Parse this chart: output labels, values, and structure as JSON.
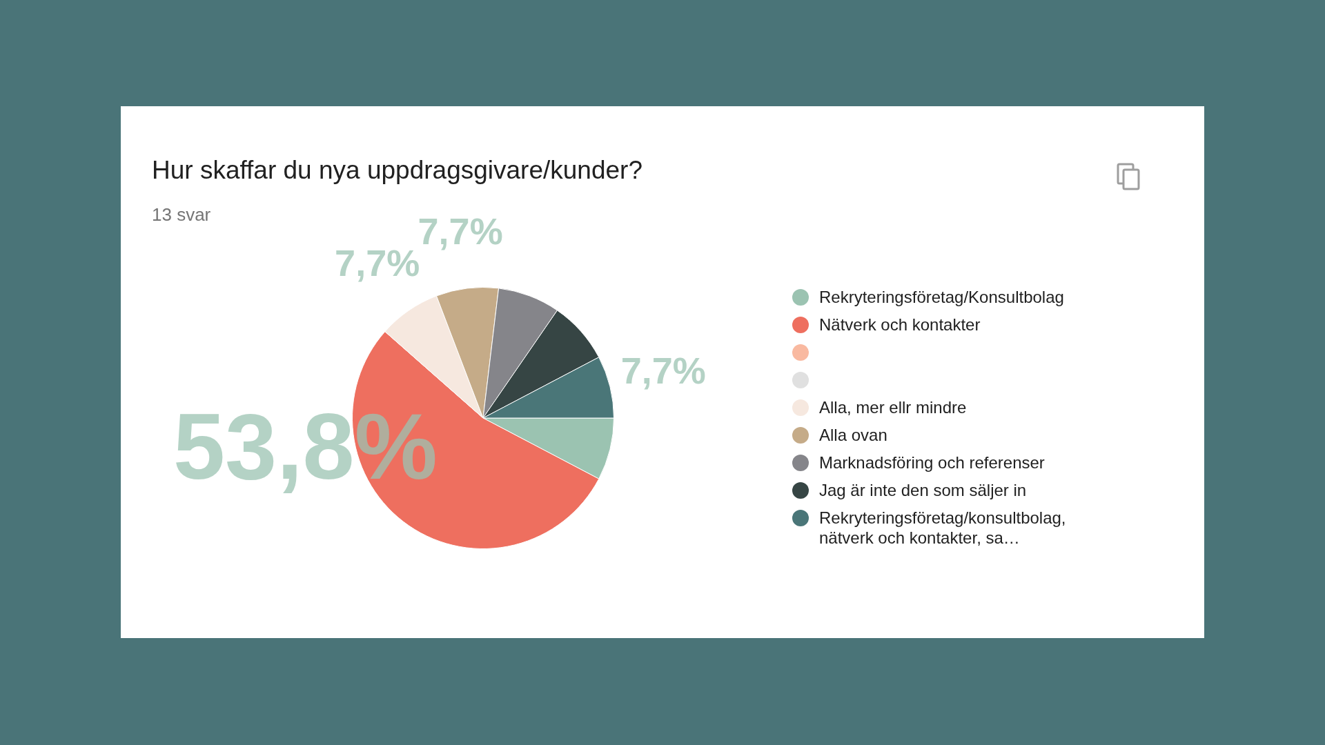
{
  "chart_data": {
    "type": "pie",
    "title": "Hur skaffar du nya uppdragsgivare/kunder?",
    "subtitle": "13 svar",
    "categories": [
      "Rekryteringsföretag/Konsultbolag",
      "Nätverk och kontakter",
      null,
      null,
      "Alla, mer ellr mindre",
      "Alla ovan",
      "Marknadsföring och referenser",
      "Jag är inte den som säljer in",
      "Rekryteringsföretag/konsultbolag, nätverk och kontakter, sa…"
    ],
    "values": [
      7.7,
      53.8,
      0,
      0,
      7.7,
      7.7,
      7.7,
      7.7,
      7.7
    ],
    "colors": [
      "#9bc3b1",
      "#ee6f5f",
      "#f9b9a0",
      "#e0e0e0",
      "#f6e8df",
      "#c5ab88",
      "#85858a",
      "#364544",
      "#4a7678"
    ],
    "value_labels": [
      null,
      "53,8%",
      null,
      null,
      "7,7%",
      "7,7%",
      null,
      null,
      "7,7%"
    ],
    "legend": "right"
  }
}
